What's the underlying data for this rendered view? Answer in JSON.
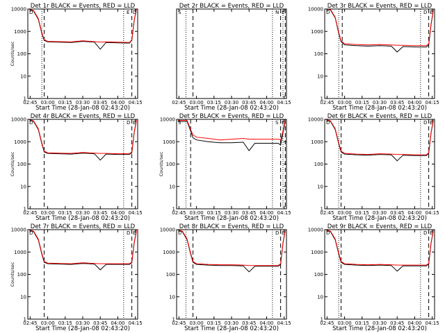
{
  "figure": {
    "layout": "3x3 grid",
    "background": "#ffffff",
    "colors": {
      "events": "#000000",
      "lld": "#ff0000",
      "markers": "#000000"
    }
  },
  "chart_data": [
    {
      "type": "line",
      "title": "Det 1r BLACK = Events, RED = LLD",
      "xlabel": "Start Time (28-Jan-08 02:43:20)",
      "ylabel": "Counts/sec",
      "yscale": "log",
      "ylim": [
        1,
        10000
      ],
      "x_ticks": [
        "02:45",
        "03:00",
        "03:15",
        "03:30",
        "03:45",
        "04:00",
        "04:15"
      ],
      "y_ticks": [
        "1",
        "10",
        "100",
        "1000",
        "10000"
      ],
      "corner_labels": {
        "left": "D",
        "right": "D",
        "right2": "E"
      },
      "markers": {
        "dashed": [
          "02:57",
          "04:12"
        ],
        "dotted": [
          "02:55",
          "04:05"
        ]
      },
      "x": [
        "02:44",
        "02:48",
        "02:52",
        "02:55",
        "02:57",
        "03:00",
        "03:10",
        "03:20",
        "03:30",
        "03:40",
        "03:45",
        "03:50",
        "04:00",
        "04:10",
        "04:12",
        "04:14",
        "04:16"
      ],
      "series": [
        {
          "name": "Events",
          "values": [
            10000,
            8000,
            3500,
            800,
            400,
            340,
            330,
            320,
            360,
            330,
            160,
            320,
            310,
            300,
            400,
            3000,
            10000
          ]
        },
        {
          "name": "LLD",
          "values": [
            10000,
            8500,
            3800,
            900,
            430,
            360,
            350,
            340,
            380,
            350,
            330,
            340,
            330,
            320,
            420,
            3200,
            10000
          ]
        }
      ]
    },
    {
      "type": "line",
      "title": "Det 2r BLACK = Events, RED = LLD",
      "xlabel": "Start Time (28-Jan-08 02:43:20)",
      "ylabel": "",
      "yscale": "log",
      "ylim": [
        1,
        10000
      ],
      "x_ticks": [
        "02:45",
        "03:00",
        "03:15",
        "03:30",
        "03:45",
        "04:00",
        "04:15"
      ],
      "y_ticks": [],
      "corner_labels": {
        "left": "S",
        "right": "E",
        "right2": "N"
      },
      "markers": {
        "dashed": [
          "02:57",
          "04:12",
          "04:16"
        ],
        "dotted": [
          "02:51",
          "04:05",
          "04:14"
        ]
      },
      "x": [],
      "series": []
    },
    {
      "type": "line",
      "title": "Det 3r BLACK = Events, RED = LLD",
      "xlabel": "Start Time (28-Jan-08 02:43:20)",
      "ylabel": "",
      "yscale": "log",
      "ylim": [
        1,
        10000
      ],
      "x_ticks": [
        "02:45",
        "03:00",
        "03:15",
        "03:30",
        "03:45",
        "04:00",
        "04:15"
      ],
      "y_ticks": [
        "1",
        "10",
        "100",
        "1000",
        "10000"
      ],
      "corner_labels": {
        "left": "D",
        "right": "E",
        "right2": "D"
      },
      "markers": {
        "dashed": [
          "02:58",
          "04:12"
        ],
        "dotted": [
          "02:55",
          "04:05"
        ]
      },
      "x": [
        "02:44",
        "02:48",
        "02:52",
        "02:55",
        "02:57",
        "03:00",
        "03:10",
        "03:20",
        "03:30",
        "03:40",
        "03:45",
        "03:50",
        "04:00",
        "04:10",
        "04:12",
        "04:14",
        "04:16"
      ],
      "series": [
        {
          "name": "Events",
          "values": [
            10000,
            9000,
            4000,
            800,
            350,
            250,
            230,
            220,
            230,
            220,
            120,
            210,
            200,
            200,
            250,
            2000,
            9000
          ]
        },
        {
          "name": "LLD",
          "values": [
            10000,
            9500,
            4300,
            900,
            380,
            280,
            260,
            250,
            260,
            250,
            240,
            240,
            230,
            230,
            280,
            2200,
            9500
          ]
        }
      ]
    },
    {
      "type": "line",
      "title": "Det 4r BLACK = Events, RED = LLD",
      "xlabel": "Start Time (28-Jan-08 02:43:20)",
      "ylabel": "Counts/sec",
      "yscale": "log",
      "ylim": [
        1,
        10000
      ],
      "x_ticks": [
        "02:45",
        "03:00",
        "03:15",
        "03:30",
        "03:45",
        "04:00",
        "04:15"
      ],
      "y_ticks": [
        "1",
        "10",
        "100",
        "1000",
        "10000"
      ],
      "corner_labels": {
        "left": "D",
        "right": "E",
        "right2": "D"
      },
      "markers": {
        "dashed": [
          "02:57",
          "04:12"
        ],
        "dotted": [
          "04:05"
        ]
      },
      "x": [
        "02:44",
        "02:48",
        "02:52",
        "02:55",
        "02:57",
        "03:00",
        "03:10",
        "03:20",
        "03:30",
        "03:40",
        "03:45",
        "03:50",
        "04:00",
        "04:10",
        "04:12",
        "04:14",
        "04:16"
      ],
      "series": [
        {
          "name": "Events",
          "values": [
            10000,
            8000,
            3500,
            800,
            350,
            300,
            290,
            280,
            310,
            290,
            150,
            280,
            270,
            270,
            320,
            2500,
            9000
          ]
        },
        {
          "name": "LLD",
          "values": [
            10000,
            8500,
            3800,
            900,
            380,
            320,
            310,
            300,
            330,
            310,
            300,
            300,
            290,
            290,
            350,
            2700,
            9500
          ]
        }
      ]
    },
    {
      "type": "line",
      "title": "Det 5r BLACK = Events, RED = LLD",
      "xlabel": "Start Time (28-Jan-08 02:43:20)",
      "ylabel": "Counts/sec",
      "yscale": "log",
      "ylim": [
        1,
        10000
      ],
      "x_ticks": [
        "02:45",
        "03:00",
        "03:15",
        "03:30",
        "03:45",
        "04:00",
        "04:15"
      ],
      "y_ticks": [
        "1",
        "10",
        "100",
        "1000",
        "10000"
      ],
      "corner_labels": {
        "left": "S",
        "right": "E",
        "right2": "S"
      },
      "markers": {
        "dashed": [
          "02:55",
          "04:12",
          "04:16"
        ],
        "dotted": [
          "02:51",
          "04:05",
          "04:14"
        ]
      },
      "x": [
        "02:44",
        "02:48",
        "02:52",
        "02:55",
        "02:57",
        "03:00",
        "03:10",
        "03:20",
        "03:30",
        "03:40",
        "03:45",
        "03:50",
        "04:00",
        "04:10",
        "04:12",
        "04:14",
        "04:16"
      ],
      "series": [
        {
          "name": "Events",
          "values": [
            8000,
            8000,
            8000,
            3000,
            1500,
            1200,
            1000,
            900,
            900,
            950,
            400,
            850,
            850,
            850,
            700,
            2500,
            8000
          ]
        },
        {
          "name": "LLD",
          "values": [
            9000,
            9000,
            9000,
            3500,
            2000,
            1600,
            1400,
            1200,
            1300,
            1400,
            1300,
            1300,
            1300,
            1300,
            1200,
            3000,
            9000
          ]
        }
      ]
    },
    {
      "type": "line",
      "title": "Det 6r BLACK = Events, RED = LLD",
      "xlabel": "Start Time (28-Jan-08 02:43:20)",
      "ylabel": "",
      "yscale": "log",
      "ylim": [
        1,
        10000
      ],
      "x_ticks": [
        "02:45",
        "03:00",
        "03:15",
        "03:30",
        "03:45",
        "04:00",
        "04:15"
      ],
      "y_ticks": [
        "1",
        "10",
        "100",
        "1000",
        "10000"
      ],
      "corner_labels": {
        "left": "D",
        "right": "E",
        "right2": "D"
      },
      "markers": {
        "dashed": [
          "02:57",
          "04:12"
        ],
        "dotted": [
          "02:55",
          "04:05"
        ]
      },
      "x": [
        "02:44",
        "02:48",
        "02:52",
        "02:55",
        "02:57",
        "03:00",
        "03:10",
        "03:20",
        "03:30",
        "03:40",
        "03:45",
        "03:50",
        "04:00",
        "04:10",
        "04:12",
        "04:14",
        "04:16"
      ],
      "series": [
        {
          "name": "Events",
          "values": [
            10000,
            8000,
            3500,
            800,
            350,
            280,
            260,
            250,
            270,
            260,
            140,
            250,
            240,
            240,
            300,
            2500,
            9000
          ]
        },
        {
          "name": "LLD",
          "values": [
            10000,
            8500,
            3800,
            900,
            380,
            300,
            280,
            270,
            290,
            280,
            270,
            270,
            260,
            260,
            320,
            2700,
            9500
          ]
        }
      ]
    },
    {
      "type": "line",
      "title": "Det 7r BLACK = Events, RED = LLD",
      "xlabel": "Start Time (28-Jan-08 02:43:20)",
      "ylabel": "Counts/sec",
      "yscale": "log",
      "ylim": [
        1,
        10000
      ],
      "x_ticks": [
        "02:45",
        "03:00",
        "03:15",
        "03:30",
        "03:45",
        "04:00",
        "04:15"
      ],
      "y_ticks": [
        "1",
        "10",
        "100",
        "1000",
        "10000"
      ],
      "corner_labels": {
        "left": "D",
        "right": "E",
        "right2": "D"
      },
      "markers": {
        "dashed": [
          "02:57",
          "04:12"
        ],
        "dotted": [
          "04:05"
        ]
      },
      "x": [
        "02:44",
        "02:48",
        "02:52",
        "02:55",
        "02:57",
        "03:00",
        "03:10",
        "03:20",
        "03:30",
        "03:40",
        "03:45",
        "03:50",
        "04:00",
        "04:10",
        "04:12",
        "04:14",
        "04:16"
      ],
      "series": [
        {
          "name": "Events",
          "values": [
            10000,
            8000,
            3500,
            800,
            350,
            300,
            290,
            280,
            310,
            290,
            160,
            280,
            280,
            280,
            330,
            2500,
            9000
          ]
        },
        {
          "name": "LLD",
          "values": [
            10000,
            8500,
            3800,
            900,
            380,
            320,
            310,
            300,
            330,
            310,
            300,
            300,
            300,
            300,
            350,
            2700,
            9500
          ]
        }
      ]
    },
    {
      "type": "line",
      "title": "Det 8r BLACK = Events, RED = LLD",
      "xlabel": "Start Time (28-Jan-08 02:43:20)",
      "ylabel": "",
      "yscale": "log",
      "ylim": [
        1,
        10000
      ],
      "x_ticks": [
        "02:45",
        "03:00",
        "03:15",
        "03:30",
        "03:45",
        "04:00",
        "04:15"
      ],
      "y_ticks": [
        "1",
        "10",
        "100",
        "1000",
        "10000"
      ],
      "corner_labels": {
        "left": "D",
        "right": "E",
        "right2": "D"
      },
      "markers": {
        "dashed": [
          "02:57",
          "04:12"
        ],
        "dotted": [
          "02:51",
          "04:05"
        ]
      },
      "x": [
        "02:44",
        "02:48",
        "02:52",
        "02:55",
        "02:57",
        "03:00",
        "03:10",
        "03:20",
        "03:30",
        "03:40",
        "03:45",
        "03:50",
        "04:00",
        "04:10",
        "04:12",
        "04:14",
        "04:16"
      ],
      "series": [
        {
          "name": "Events",
          "values": [
            10000,
            8000,
            3500,
            800,
            350,
            280,
            260,
            250,
            250,
            240,
            130,
            230,
            230,
            230,
            280,
            2500,
            9000
          ]
        },
        {
          "name": "LLD",
          "values": [
            10000,
            8500,
            3800,
            900,
            380,
            300,
            280,
            270,
            270,
            260,
            250,
            250,
            250,
            250,
            300,
            2700,
            9500
          ]
        }
      ]
    },
    {
      "type": "line",
      "title": "Det 9r BLACK = Events, RED = LLD",
      "xlabel": "Start Time (28-Jan-08 02:43:20)",
      "ylabel": "",
      "yscale": "log",
      "ylim": [
        1,
        10000
      ],
      "x_ticks": [
        "02:45",
        "03:00",
        "03:15",
        "03:30",
        "03:45",
        "04:00",
        "04:15"
      ],
      "y_ticks": [
        "1",
        "10",
        "100",
        "1000",
        "10000"
      ],
      "corner_labels": {
        "left": "D",
        "right": "E",
        "right2": "D"
      },
      "markers": {
        "dashed": [
          "02:57",
          "04:12"
        ],
        "dotted": [
          "02:55",
          "04:05"
        ]
      },
      "x": [
        "02:44",
        "02:48",
        "02:52",
        "02:55",
        "02:57",
        "03:00",
        "03:10",
        "03:20",
        "03:30",
        "03:40",
        "03:45",
        "03:50",
        "04:00",
        "04:10",
        "04:12",
        "04:14",
        "04:16"
      ],
      "series": [
        {
          "name": "Events",
          "values": [
            10000,
            8000,
            3500,
            800,
            350,
            280,
            260,
            250,
            260,
            250,
            140,
            240,
            240,
            240,
            290,
            2500,
            9000
          ]
        },
        {
          "name": "LLD",
          "values": [
            10000,
            8500,
            3800,
            900,
            380,
            300,
            280,
            270,
            280,
            270,
            260,
            260,
            260,
            260,
            310,
            2700,
            9500
          ]
        }
      ]
    }
  ]
}
